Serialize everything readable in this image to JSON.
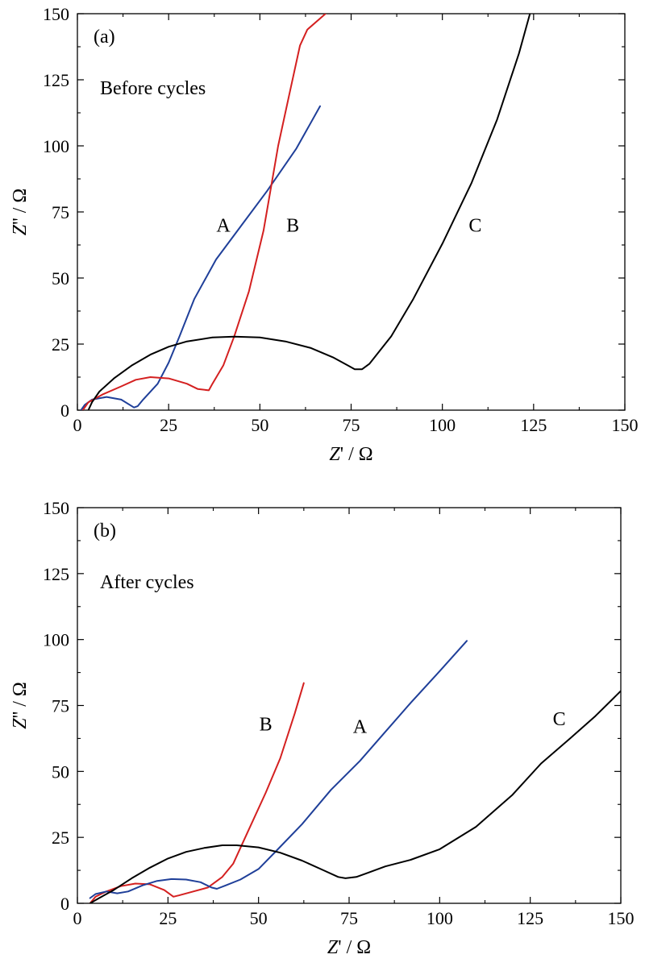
{
  "chart_data": [
    {
      "type": "line",
      "panel_label": "(a)",
      "annotation": "Before cycles",
      "xlabel_italic": "Z",
      "xlabel_rest": "' / Ω",
      "ylabel_italic": "Z",
      "ylabel_rest": "'' / Ω",
      "xlim": [
        0,
        150
      ],
      "ylim": [
        0,
        150
      ],
      "xticks": [
        0,
        25,
        50,
        75,
        100,
        125,
        150
      ],
      "yticks": [
        0,
        25,
        50,
        75,
        100,
        125,
        150
      ],
      "grid": false,
      "series": [
        {
          "name": "A",
          "color": "#1f3f99",
          "label_pos": [
            40,
            70
          ],
          "points": [
            [
              1,
              0
            ],
            [
              2,
              2
            ],
            [
              4,
              4
            ],
            [
              8,
              5
            ],
            [
              12,
              4
            ],
            [
              15.5,
              1
            ],
            [
              16.5,
              1.5
            ],
            [
              18,
              4
            ],
            [
              22,
              10
            ],
            [
              25,
              18
            ],
            [
              28,
              28
            ],
            [
              32,
              42
            ],
            [
              38,
              57
            ],
            [
              45,
              70
            ],
            [
              52,
              83
            ],
            [
              60,
              99
            ],
            [
              66.5,
              115
            ]
          ]
        },
        {
          "name": "B",
          "color": "#d42020",
          "label_pos": [
            59,
            70
          ],
          "points": [
            [
              1.5,
              0
            ],
            [
              3,
              3
            ],
            [
              7,
              6
            ],
            [
              12,
              9
            ],
            [
              16,
              11.5
            ],
            [
              20,
              12.5
            ],
            [
              25,
              12
            ],
            [
              30,
              10
            ],
            [
              33,
              8
            ],
            [
              36,
              7.5
            ],
            [
              37,
              10
            ],
            [
              40,
              17
            ],
            [
              43,
              28
            ],
            [
              47,
              45
            ],
            [
              51,
              68
            ],
            [
              55,
              100
            ],
            [
              58,
              119
            ],
            [
              61,
              138
            ],
            [
              63,
              144
            ],
            [
              68,
              150
            ]
          ]
        },
        {
          "name": "C",
          "color": "#000000",
          "label_pos": [
            109,
            70
          ],
          "points": [
            [
              3,
              0
            ],
            [
              4,
              3
            ],
            [
              6,
              7
            ],
            [
              10,
              12
            ],
            [
              15,
              17
            ],
            [
              20,
              21
            ],
            [
              25,
              24
            ],
            [
              30,
              26
            ],
            [
              37,
              27.5
            ],
            [
              43,
              27.8
            ],
            [
              50,
              27.5
            ],
            [
              57,
              26
            ],
            [
              64,
              23.5
            ],
            [
              70,
              20
            ],
            [
              74,
              17
            ],
            [
              76,
              15.5
            ],
            [
              78,
              15.5
            ],
            [
              80,
              17.5
            ],
            [
              82,
              21
            ],
            [
              86,
              28
            ],
            [
              92,
              42
            ],
            [
              100,
              63
            ],
            [
              108,
              86
            ],
            [
              115,
              110
            ],
            [
              121,
              135
            ],
            [
              124,
              150
            ]
          ]
        }
      ]
    },
    {
      "type": "line",
      "panel_label": "(b)",
      "annotation": "After cycles",
      "xlabel_italic": "Z",
      "xlabel_rest": "' / Ω",
      "ylabel_italic": "Z",
      "ylabel_rest": "'' / Ω",
      "xlim": [
        0,
        150
      ],
      "ylim": [
        0,
        150
      ],
      "xticks": [
        0,
        25,
        50,
        75,
        100,
        125,
        150
      ],
      "yticks": [
        0,
        25,
        50,
        75,
        100,
        125,
        150
      ],
      "grid": false,
      "series": [
        {
          "name": "B",
          "color": "#d42020",
          "label_pos": [
            52,
            68
          ],
          "points": [
            [
              3.5,
              0
            ],
            [
              5,
              2.5
            ],
            [
              8,
              4.5
            ],
            [
              12,
              6.5
            ],
            [
              16,
              7.5
            ],
            [
              20,
              7.2
            ],
            [
              24,
              5
            ],
            [
              26.5,
              2.5
            ],
            [
              28,
              3
            ],
            [
              32,
              4.5
            ],
            [
              36,
              6
            ],
            [
              40,
              10
            ],
            [
              43,
              15
            ],
            [
              47,
              27
            ],
            [
              52,
              42
            ],
            [
              56,
              55
            ],
            [
              60,
              72
            ],
            [
              62.5,
              83.5
            ]
          ]
        },
        {
          "name": "A",
          "color": "#1f3f99",
          "label_pos": [
            78,
            67
          ],
          "points": [
            [
              3.5,
              2
            ],
            [
              5,
              3.5
            ],
            [
              8,
              4.5
            ],
            [
              11,
              3.8
            ],
            [
              14,
              4.5
            ],
            [
              18,
              6.8
            ],
            [
              22,
              8.5
            ],
            [
              26,
              9.2
            ],
            [
              30,
              9
            ],
            [
              34,
              8
            ],
            [
              37,
              6
            ],
            [
              38.5,
              5.5
            ],
            [
              41,
              6.8
            ],
            [
              45,
              9
            ],
            [
              50,
              13
            ],
            [
              55,
              20
            ],
            [
              62,
              30
            ],
            [
              70,
              43
            ],
            [
              78,
              54
            ],
            [
              85,
              65
            ],
            [
              92,
              76
            ],
            [
              100,
              88
            ],
            [
              107.5,
              99.5
            ]
          ]
        },
        {
          "name": "C",
          "color": "#000000",
          "label_pos": [
            133,
            70
          ],
          "points": [
            [
              3.5,
              0
            ],
            [
              6,
              2
            ],
            [
              10,
              5
            ],
            [
              15,
              9.5
            ],
            [
              20,
              13.5
            ],
            [
              25,
              17
            ],
            [
              30,
              19.5
            ],
            [
              35,
              21
            ],
            [
              40,
              22
            ],
            [
              44,
              22
            ],
            [
              50,
              21.2
            ],
            [
              56,
              19.2
            ],
            [
              62,
              16.2
            ],
            [
              68,
              12.5
            ],
            [
              72,
              10
            ],
            [
              74,
              9.5
            ],
            [
              77,
              10
            ],
            [
              80,
              11.5
            ],
            [
              85,
              14
            ],
            [
              92,
              16.5
            ],
            [
              100,
              20.5
            ],
            [
              110,
              29
            ],
            [
              120,
              41
            ],
            [
              128,
              53
            ],
            [
              136,
              62.5
            ],
            [
              143,
              71
            ],
            [
              150,
              80.5
            ]
          ]
        }
      ]
    }
  ]
}
